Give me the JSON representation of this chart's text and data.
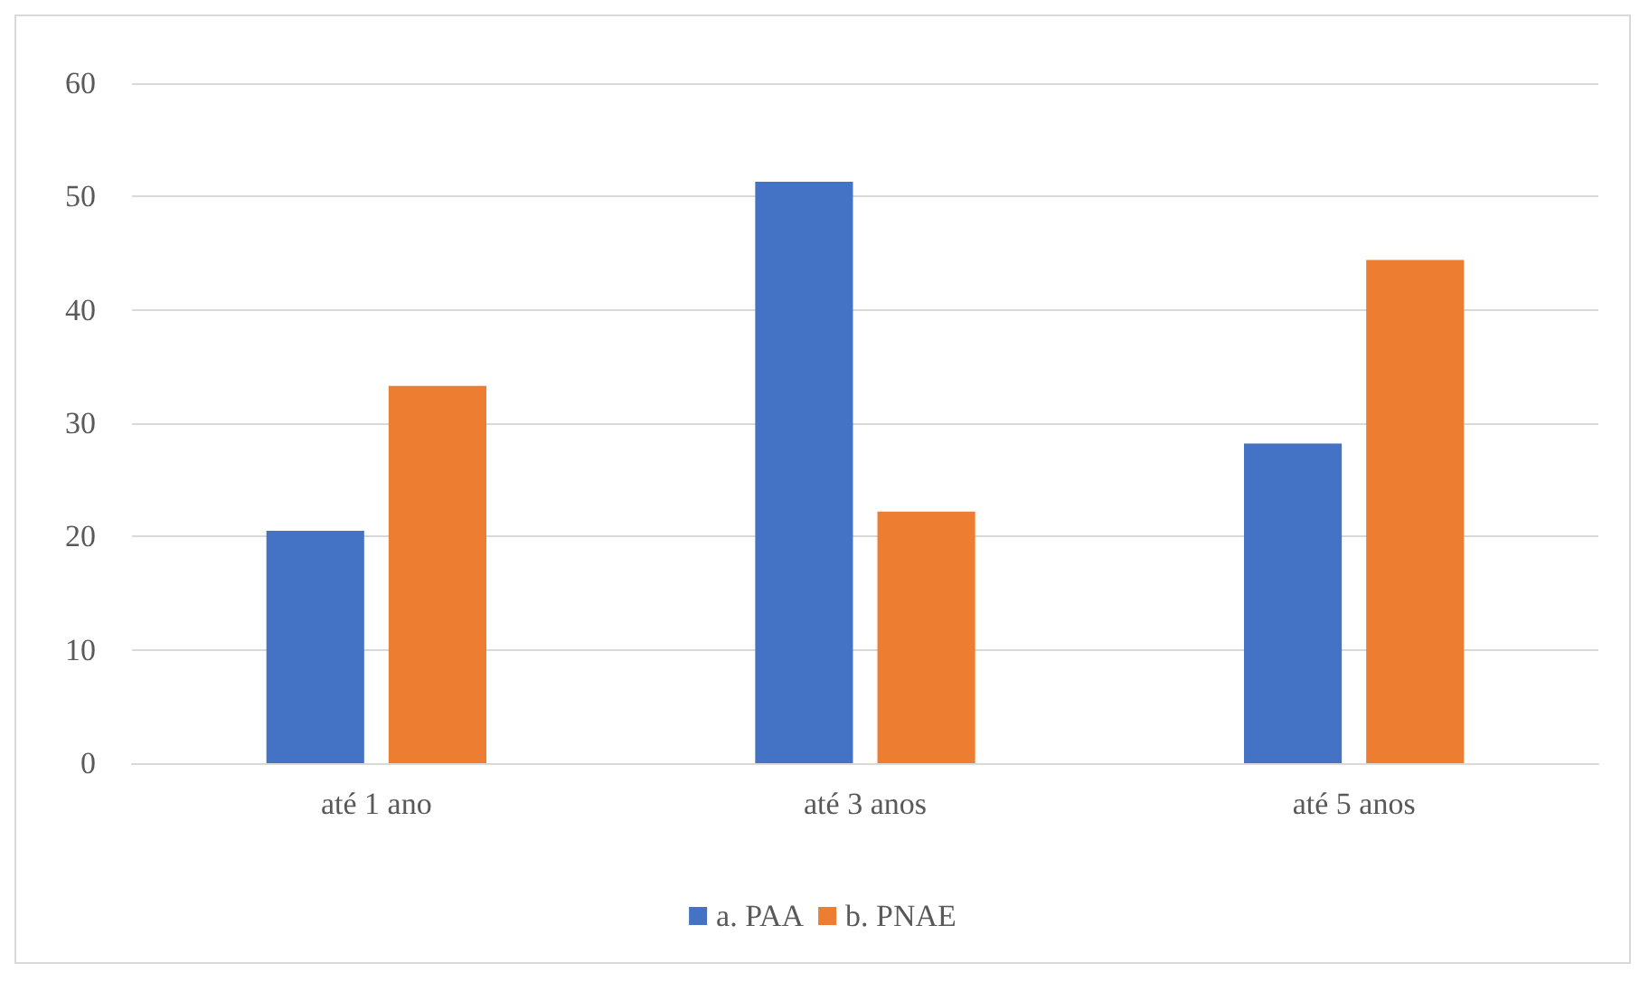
{
  "chart_data": {
    "type": "bar",
    "categories": [
      "até 1 ano",
      "até 3 anos",
      "até 5 anos"
    ],
    "series": [
      {
        "name": "a. PAA",
        "color": "#4472c4",
        "values": [
          20.5,
          51.3,
          28.2
        ]
      },
      {
        "name": "b. PNAE",
        "color": "#ed7d31",
        "values": [
          33.3,
          22.2,
          44.4
        ]
      }
    ],
    "ylim": [
      0,
      60
    ],
    "yticks": [
      0,
      10,
      20,
      30,
      40,
      50,
      60
    ],
    "grid": "y",
    "legend": "bottom"
  }
}
